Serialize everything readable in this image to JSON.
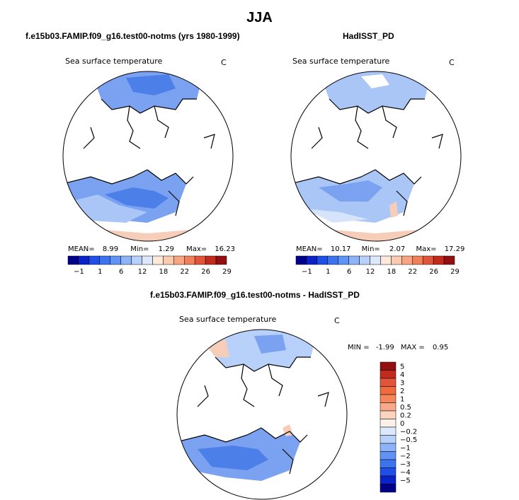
{
  "page": {
    "title": "JJA"
  },
  "panels": [
    {
      "heading": "f.e15b03.FAMIP.f09_g16.test00-notms (yrs 1980-1999)",
      "field": "Sea surface temperature",
      "units": "C",
      "stats": {
        "mean_label": "MEAN=",
        "mean": "8.99",
        "min_label": "Min=",
        "min": "1.29",
        "max_label": "Max=",
        "max": "16.23"
      }
    },
    {
      "heading": "HadISST_PD",
      "field": "Sea surface temperature",
      "units": "C",
      "stats": {
        "mean_label": "MEAN=",
        "mean": "10.17",
        "min_label": "Min=",
        "min": "2.07",
        "max_label": "Max=",
        "max": "17.29"
      }
    },
    {
      "heading": "f.e15b03.FAMIP.f09_g16.test00-notms - HadISST_PD",
      "field": "Sea surface temperature",
      "units": "C",
      "stats": {
        "min_label": "MIN =",
        "min": "-1.99",
        "max_label": "MAX =",
        "max": "0.95"
      }
    }
  ],
  "colorbar_abs": {
    "labels": [
      "−1",
      "1",
      "6",
      "12",
      "18",
      "22",
      "26",
      "29"
    ],
    "colors": [
      "#00008b",
      "#0a23c8",
      "#1f4fe6",
      "#3c74f0",
      "#5f93f5",
      "#8db4f8",
      "#b8d1fa",
      "#dce8fb",
      "#fde9dc",
      "#fbcbb0",
      "#f7a583",
      "#f07f5a",
      "#e2553a",
      "#c22b1c",
      "#930f0f"
    ]
  },
  "colorbar_diff": {
    "labels": [
      "5",
      "4",
      "3",
      "2",
      "1",
      "0.5",
      "0.2",
      "0",
      "−0.2",
      "−0.5",
      "−1",
      "−2",
      "−3",
      "−4",
      "−5"
    ],
    "colors": [
      "#930f0f",
      "#c22b1c",
      "#e2553a",
      "#f06a3e",
      "#f5865a",
      "#f8a98a",
      "#fcd3bd",
      "#fdf0e8",
      "#dce8fb",
      "#b8d1fa",
      "#8db4f8",
      "#5f93f5",
      "#3c74f0",
      "#1f4fe6",
      "#0a23c8",
      "#00008b"
    ]
  },
  "colors": {
    "ocean_blue": "#7aa2f0",
    "ocean_light": "#a9c6f7",
    "ocean_dark": "#4d7fe8",
    "warm": "#f6cdb8"
  }
}
